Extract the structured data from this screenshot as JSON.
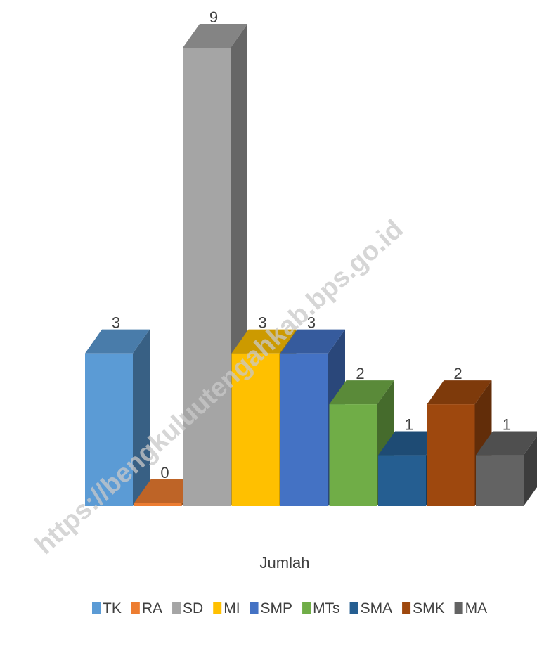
{
  "chart_data": {
    "type": "bar",
    "style": "3d-column",
    "xlabel": "Jumlah",
    "ylabel": "",
    "ylim": [
      0,
      9
    ],
    "grid": false,
    "legend_position": "bottom",
    "series": [
      {
        "name": "TK",
        "values": [
          3
        ],
        "color": "#5b9bd5"
      },
      {
        "name": "RA",
        "values": [
          0
        ],
        "color": "#ed7d31"
      },
      {
        "name": "SD",
        "values": [
          9
        ],
        "color": "#a5a5a5"
      },
      {
        "name": "MI",
        "values": [
          3
        ],
        "color": "#ffc000"
      },
      {
        "name": "SMP",
        "values": [
          3
        ],
        "color": "#4472c4"
      },
      {
        "name": "MTs",
        "values": [
          2
        ],
        "color": "#70ad47"
      },
      {
        "name": "SMA",
        "values": [
          1
        ],
        "color": "#255e91"
      },
      {
        "name": "SMK",
        "values": [
          2
        ],
        "color": "#9e480e"
      },
      {
        "name": "MA",
        "values": [
          1
        ],
        "color": "#636363"
      }
    ]
  },
  "watermark": "https://bengkuluutengahkab.bps.go.id"
}
